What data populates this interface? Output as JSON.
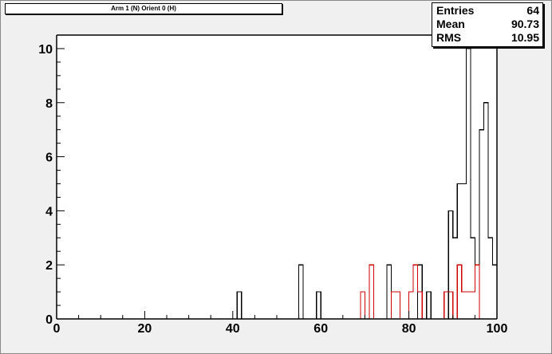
{
  "title": "Arm 1 (N) Orient 0 (H)",
  "stats": {
    "rows": [
      {
        "label": "Entries",
        "value": "64"
      },
      {
        "label": "Mean",
        "value": "90.73"
      },
      {
        "label": "RMS",
        "value": "10.95"
      }
    ]
  },
  "colors": {
    "frame_bg": "#f0f0f0",
    "pad_bg": "#ffffff",
    "series_black": "#000000",
    "series_red": "#cc0000"
  },
  "chart_data": {
    "type": "histogram",
    "xlim": [
      0,
      100
    ],
    "ylim": [
      0,
      10.5
    ],
    "xticks": [
      0,
      20,
      40,
      60,
      80,
      100
    ],
    "yticks": [
      0,
      2,
      4,
      6,
      8,
      10
    ],
    "bin_width": 1,
    "series": [
      {
        "color": "#000000",
        "bins": [
          {
            "x": 41,
            "y": 1
          },
          {
            "x": 55,
            "y": 2
          },
          {
            "x": 59,
            "y": 1
          },
          {
            "x": 75,
            "y": 2
          },
          {
            "x": 82,
            "y": 2
          },
          {
            "x": 84,
            "y": 1
          },
          {
            "x": 89,
            "y": 4
          },
          {
            "x": 90,
            "y": 3
          },
          {
            "x": 91,
            "y": 5
          },
          {
            "x": 92,
            "y": 5
          },
          {
            "x": 93,
            "y": 10
          },
          {
            "x": 94,
            "y": 3
          },
          {
            "x": 95,
            "y": 2
          },
          {
            "x": 96,
            "y": 7
          },
          {
            "x": 97,
            "y": 8
          },
          {
            "x": 98,
            "y": 3
          },
          {
            "x": 99,
            "y": 2
          }
        ]
      },
      {
        "color": "#cc0000",
        "bins": [
          {
            "x": 69,
            "y": 1
          },
          {
            "x": 71,
            "y": 2
          },
          {
            "x": 76,
            "y": 1
          },
          {
            "x": 77,
            "y": 1
          },
          {
            "x": 80,
            "y": 1
          },
          {
            "x": 81,
            "y": 2
          },
          {
            "x": 82,
            "y": 1
          },
          {
            "x": 88,
            "y": 1
          },
          {
            "x": 89,
            "y": 1
          },
          {
            "x": 91,
            "y": 2
          },
          {
            "x": 92,
            "y": 1
          },
          {
            "x": 93,
            "y": 1
          },
          {
            "x": 94,
            "y": 1
          },
          {
            "x": 95,
            "y": 2
          }
        ]
      }
    ]
  }
}
